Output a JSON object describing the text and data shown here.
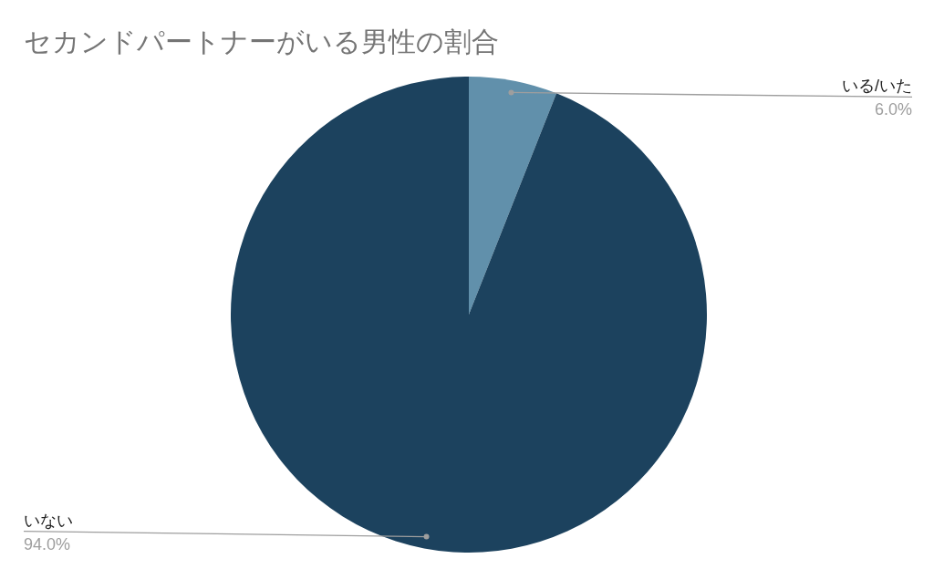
{
  "chart_data": {
    "type": "pie",
    "title": "セカンドパートナーがいる男性の割合",
    "categories": [
      "いる/いた",
      "いない"
    ],
    "values": [
      6.0,
      94.0
    ],
    "colors": [
      "#6190ab",
      "#1c425e"
    ],
    "value_labels": [
      "6.0%",
      "94.0%"
    ],
    "legend": false
  }
}
